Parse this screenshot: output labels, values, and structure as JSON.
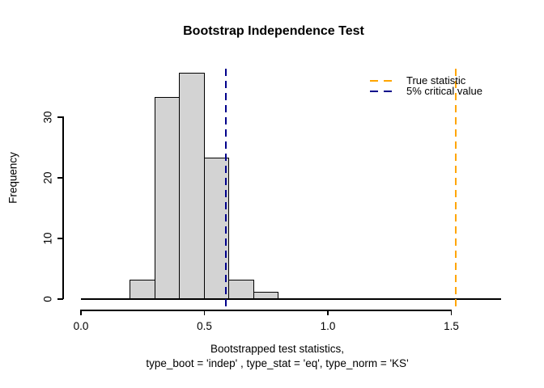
{
  "chart_data": {
    "type": "bar",
    "subtype": "histogram",
    "title": "Bootstrap Independence Test",
    "ylabel": "Frequency",
    "xlabel_line1": "Bootstrapped test statistics,",
    "xlabel_line2": "type_boot = 'indep' , type_stat = 'eq', type_norm = 'KS'",
    "bin_breaks": [
      0.2,
      0.3,
      0.4,
      0.5,
      0.6,
      0.7,
      0.8
    ],
    "counts": [
      3,
      33,
      37,
      23,
      3,
      1
    ],
    "x_tick_values": [
      0,
      0.5,
      1,
      1.5
    ],
    "x_tick_labels": [
      "0.0",
      "0.5",
      "1.0",
      "1.5"
    ],
    "y_tick_values": [
      0,
      10,
      20,
      30
    ],
    "y_tick_labels": [
      "0",
      "10",
      "20",
      "30"
    ],
    "xlim": [
      0,
      1.7
    ],
    "ylim": [
      0,
      37
    ],
    "grid": false,
    "legend_position": "top-right",
    "bar_fill": "#D3D3D3",
    "bar_border": "#000000",
    "vlines": [
      {
        "label": "True statistic",
        "value": 1.52,
        "color": "#FFA500",
        "style": "dashed"
      },
      {
        "label": "5% critical value",
        "value": 0.59,
        "color": "#00008B",
        "style": "dashed"
      }
    ]
  }
}
